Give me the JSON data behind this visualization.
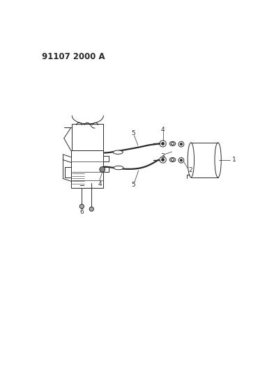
{
  "title": "91107 2000 A",
  "background_color": "#ffffff",
  "line_color": "#2a2a2a",
  "fig_width": 3.93,
  "fig_height": 5.33,
  "dpi": 100,
  "title_fontsize": 8.5,
  "label_fontsize": 6.5,
  "hose_lw": 1.6,
  "part_lw": 0.7,
  "engine_color": "#555555",
  "callout_lw": 0.5
}
